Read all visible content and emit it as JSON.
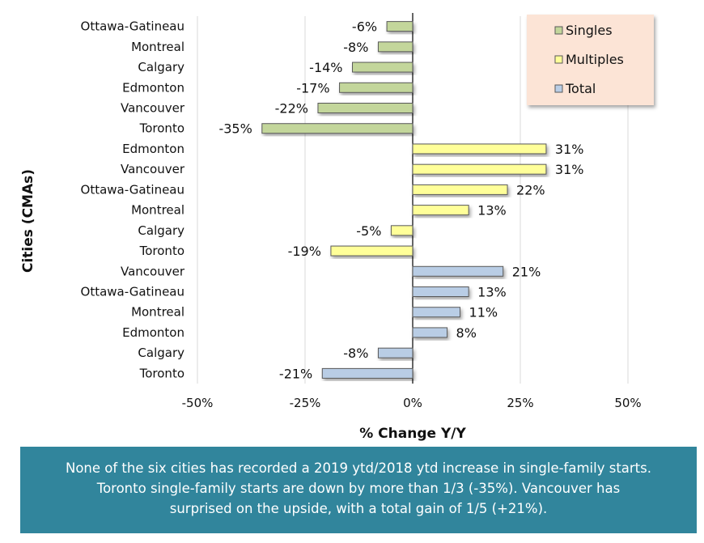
{
  "chart_data": {
    "type": "bar",
    "orientation": "horizontal",
    "xlabel": "% Change Y/Y",
    "ylabel": "Cities (CMAs)",
    "xlim": [
      -50,
      50
    ],
    "xticks": [
      "-50%",
      "-25%",
      "0%",
      "25%",
      "50%"
    ],
    "xtick_values": [
      -50,
      -25,
      0,
      25,
      50
    ],
    "grid": "vertical",
    "legend_position": "top-right",
    "series": [
      {
        "name": "Singles",
        "color": "#c3d69b",
        "categories": [
          "Ottawa-Gatineau",
          "Montreal",
          "Calgary",
          "Edmonton",
          "Vancouver",
          "Toronto"
        ],
        "values": [
          -6,
          -8,
          -14,
          -17,
          -22,
          -35
        ],
        "labels": [
          "-6%",
          "-8%",
          "-14%",
          "-17%",
          "-22%",
          "-35%"
        ]
      },
      {
        "name": "Multiples",
        "color": "#ffff99",
        "categories": [
          "Edmonton",
          "Vancouver",
          "Ottawa-Gatineau",
          "Montreal",
          "Calgary",
          "Toronto"
        ],
        "values": [
          31,
          31,
          22,
          13,
          -5,
          -19
        ],
        "labels": [
          "31%",
          "31%",
          "22%",
          "13%",
          "-5%",
          "-19%"
        ]
      },
      {
        "name": "Total",
        "color": "#b9cde5",
        "categories": [
          "Vancouver",
          "Ottawa-Gatineau",
          "Montreal",
          "Edmonton",
          "Calgary",
          "Toronto"
        ],
        "values": [
          21,
          13,
          11,
          8,
          -8,
          -21
        ],
        "labels": [
          "21%",
          "13%",
          "11%",
          "8%",
          "-8%",
          "-21%"
        ]
      }
    ]
  },
  "caption": {
    "lines": [
      "None of the six cities has recorded a 2019 ytd/2018 ytd increase in single-family starts.",
      "Toronto single-family starts are down by more than 1/3 (-35%). Vancouver has",
      "surprised on the upside, with a total gain of 1/5 (+21%)."
    ]
  }
}
